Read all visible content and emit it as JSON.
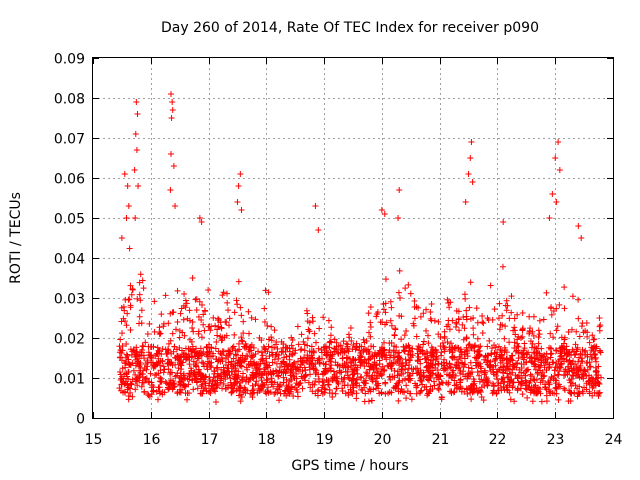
{
  "chart_data": {
    "type": "scatter",
    "title": "Day 260 of 2014, Rate Of TEC Index for receiver p090",
    "xlabel": "GPS time / hours",
    "ylabel": "ROTI / TECUs",
    "xlim": [
      15,
      24
    ],
    "ylim": [
      0,
      0.09
    ],
    "x_ticks": [
      "15",
      "16",
      "17",
      "18",
      "19",
      "20",
      "21",
      "22",
      "23",
      "24"
    ],
    "y_ticks": [
      "0",
      "0.01",
      "0.02",
      "0.03",
      "0.04",
      "0.05",
      "0.06",
      "0.07",
      "0.08",
      "0.09"
    ],
    "grid": true,
    "marker": "+",
    "color": "#ff0000",
    "series": [
      {
        "name": "p090",
        "data_range_x": [
          15.45,
          23.8
        ],
        "points": [
          [
            15.55,
            0.061
          ],
          [
            15.6,
            0.058
          ],
          [
            15.62,
            0.053
          ],
          [
            15.5,
            0.045
          ],
          [
            15.58,
            0.05
          ],
          [
            15.75,
            0.079
          ],
          [
            15.77,
            0.076
          ],
          [
            15.74,
            0.071
          ],
          [
            15.76,
            0.067
          ],
          [
            15.72,
            0.062
          ],
          [
            15.78,
            0.058
          ],
          [
            15.73,
            0.05
          ],
          [
            16.35,
            0.081
          ],
          [
            16.37,
            0.079
          ],
          [
            16.38,
            0.077
          ],
          [
            16.36,
            0.075
          ],
          [
            16.35,
            0.066
          ],
          [
            16.4,
            0.063
          ],
          [
            16.34,
            0.057
          ],
          [
            16.42,
            0.053
          ],
          [
            16.85,
            0.05
          ],
          [
            16.88,
            0.049
          ],
          [
            17.55,
            0.061
          ],
          [
            17.52,
            0.058
          ],
          [
            17.5,
            0.054
          ],
          [
            17.57,
            0.052
          ],
          [
            18.85,
            0.053
          ],
          [
            18.9,
            0.047
          ],
          [
            20.0,
            0.052
          ],
          [
            20.05,
            0.051
          ],
          [
            20.3,
            0.057
          ],
          [
            20.28,
            0.05
          ],
          [
            21.55,
            0.069
          ],
          [
            21.53,
            0.065
          ],
          [
            21.5,
            0.061
          ],
          [
            21.57,
            0.059
          ],
          [
            21.45,
            0.054
          ],
          [
            22.1,
            0.049
          ],
          [
            23.05,
            0.069
          ],
          [
            23.0,
            0.065
          ],
          [
            23.08,
            0.062
          ],
          [
            22.95,
            0.056
          ],
          [
            23.02,
            0.054
          ],
          [
            22.9,
            0.05
          ],
          [
            23.4,
            0.048
          ],
          [
            23.45,
            0.045
          ]
        ],
        "envelope": [
          [
            15.45,
            0.032
          ],
          [
            15.6,
            0.045
          ],
          [
            15.8,
            0.038
          ],
          [
            16.0,
            0.03
          ],
          [
            16.2,
            0.034
          ],
          [
            16.4,
            0.04
          ],
          [
            16.6,
            0.036
          ],
          [
            16.8,
            0.038
          ],
          [
            17.0,
            0.032
          ],
          [
            17.2,
            0.03
          ],
          [
            17.4,
            0.04
          ],
          [
            17.6,
            0.035
          ],
          [
            17.8,
            0.025
          ],
          [
            18.0,
            0.035
          ],
          [
            18.2,
            0.022
          ],
          [
            18.4,
            0.02
          ],
          [
            18.6,
            0.024
          ],
          [
            18.8,
            0.03
          ],
          [
            19.0,
            0.028
          ],
          [
            19.2,
            0.022
          ],
          [
            19.4,
            0.024
          ],
          [
            19.6,
            0.022
          ],
          [
            19.8,
            0.028
          ],
          [
            20.0,
            0.038
          ],
          [
            20.2,
            0.04
          ],
          [
            20.4,
            0.036
          ],
          [
            20.6,
            0.034
          ],
          [
            20.8,
            0.035
          ],
          [
            21.0,
            0.032
          ],
          [
            21.2,
            0.03
          ],
          [
            21.4,
            0.032
          ],
          [
            21.6,
            0.035
          ],
          [
            21.8,
            0.03
          ],
          [
            22.0,
            0.042
          ],
          [
            22.2,
            0.035
          ],
          [
            22.4,
            0.028
          ],
          [
            22.6,
            0.025
          ],
          [
            22.8,
            0.03
          ],
          [
            23.0,
            0.038
          ],
          [
            23.2,
            0.032
          ],
          [
            23.4,
            0.03
          ],
          [
            23.6,
            0.026
          ],
          [
            23.8,
            0.028
          ]
        ]
      }
    ]
  }
}
